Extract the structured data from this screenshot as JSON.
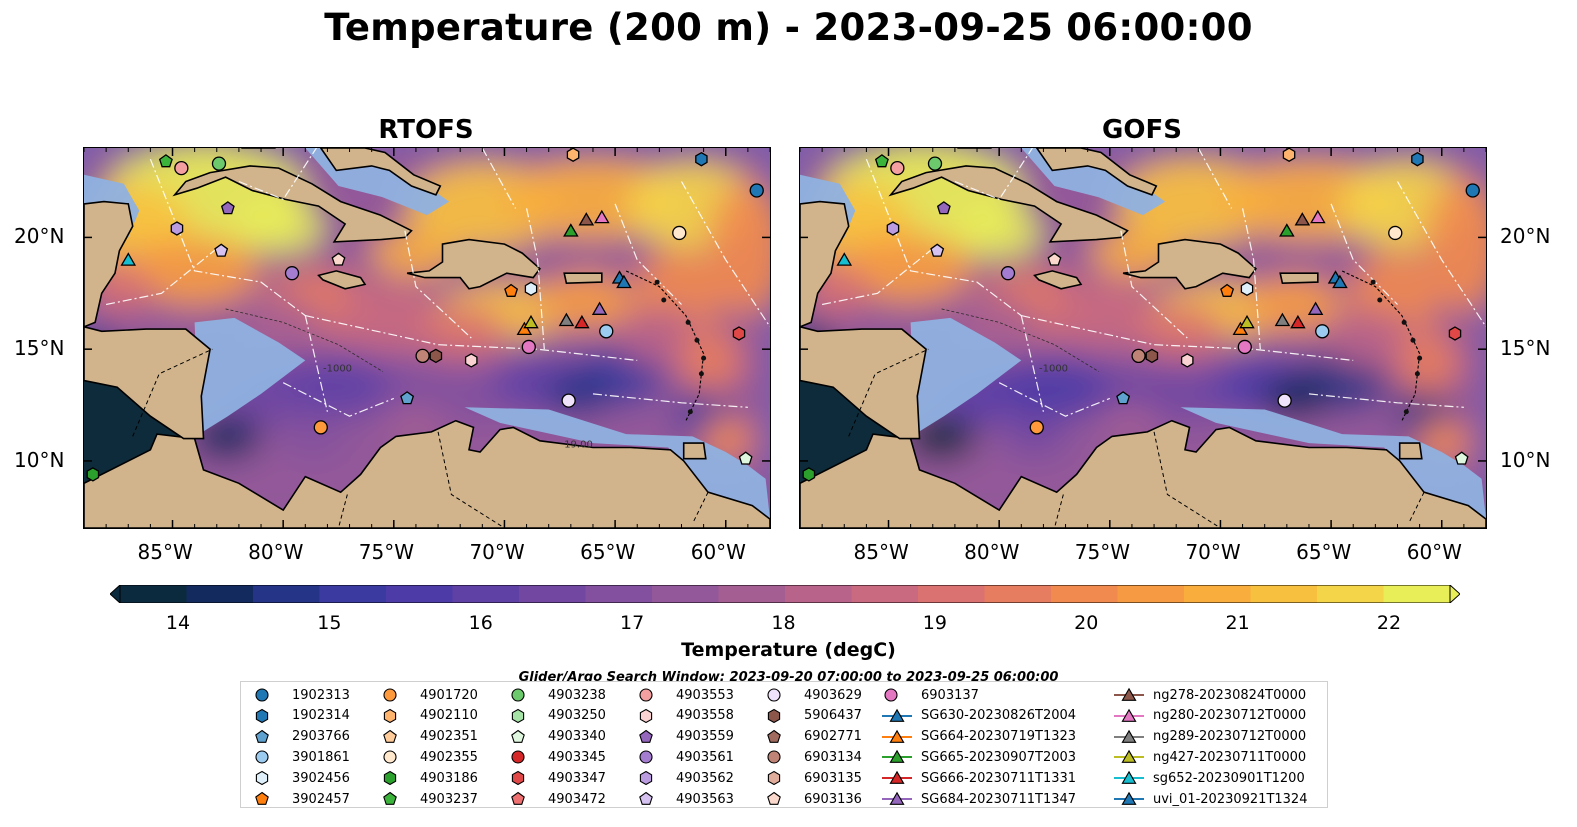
{
  "title": "Temperature (200 m) - 2023-09-25 06:00:00",
  "panels": [
    {
      "title": "RTOFS"
    },
    {
      "title": "GOFS"
    }
  ],
  "axes": {
    "lon_ticks": [
      "85°W",
      "80°W",
      "75°W",
      "70°W",
      "65°W",
      "60°W"
    ],
    "lat_ticks": [
      "20°N",
      "15°N",
      "10°N"
    ],
    "lon_range": [
      -89,
      -58
    ],
    "lat_range": [
      7,
      24
    ],
    "contour_labels": [
      "-1000",
      "19.00"
    ]
  },
  "colorbar": {
    "label": "Temperature (degC)",
    "ticks": [
      "14",
      "15",
      "16",
      "17",
      "18",
      "19",
      "20",
      "21",
      "22"
    ],
    "range": [
      14,
      22
    ],
    "extend": "both",
    "colors": [
      "#0b2a3e",
      "#122a5e",
      "#253487",
      "#3a3aa0",
      "#4d3ca7",
      "#5f41a6",
      "#7147a2",
      "#82509e",
      "#935899",
      "#a55e92",
      "#b7638a",
      "#c96a80",
      "#d97270",
      "#e67c60",
      "#f08a4f",
      "#f69b43",
      "#f8ad3d",
      "#f8c03f",
      "#f4d449",
      "#e8ee58"
    ]
  },
  "legend": {
    "search_window": "Glider/Argo Search Window: 2023-09-20 07:00:00 to 2023-09-25 06:00:00",
    "columns": [
      [
        {
          "label": "1902313",
          "marker": "circle",
          "color": "#1f77b4"
        },
        {
          "label": "1902314",
          "marker": "hexagon",
          "color": "#1f77b4"
        },
        {
          "label": "2903766",
          "marker": "pentagon",
          "color": "#5fa2d0"
        },
        {
          "label": "3901861",
          "marker": "circle",
          "color": "#9ccbf0"
        },
        {
          "label": "3902456",
          "marker": "hexagon",
          "color": "#dff0fb"
        },
        {
          "label": "3902457",
          "marker": "pentagon",
          "color": "#ff7f0e"
        }
      ],
      [
        {
          "label": "4901720",
          "marker": "circle",
          "color": "#ff9a3c"
        },
        {
          "label": "4902110",
          "marker": "hexagon",
          "color": "#ffb46e"
        },
        {
          "label": "4902351",
          "marker": "pentagon",
          "color": "#ffcc9a"
        },
        {
          "label": "4902355",
          "marker": "circle",
          "color": "#ffe8cc"
        },
        {
          "label": "4903186",
          "marker": "hexagon",
          "color": "#2ca02c"
        },
        {
          "label": "4903237",
          "marker": "pentagon",
          "color": "#3cb43c"
        }
      ],
      [
        {
          "label": "4903238",
          "marker": "circle",
          "color": "#6cc96c"
        },
        {
          "label": "4903250",
          "marker": "hexagon",
          "color": "#a6e3a6"
        },
        {
          "label": "4903340",
          "marker": "pentagon",
          "color": "#dff6df"
        },
        {
          "label": "4903345",
          "marker": "circle",
          "color": "#d62728"
        },
        {
          "label": "4903347",
          "marker": "hexagon",
          "color": "#e04848"
        },
        {
          "label": "4903472",
          "marker": "pentagon",
          "color": "#ee7070"
        }
      ],
      [
        {
          "label": "4903553",
          "marker": "circle",
          "color": "#f4a0a0"
        },
        {
          "label": "4903558",
          "marker": "hexagon",
          "color": "#fbd2d2"
        },
        {
          "label": "4903559",
          "marker": "pentagon",
          "color": "#9467bd"
        },
        {
          "label": "4903561",
          "marker": "circle",
          "color": "#a47dd0"
        },
        {
          "label": "4903562",
          "marker": "hexagon",
          "color": "#bb9ce0"
        },
        {
          "label": "4903563",
          "marker": "pentagon",
          "color": "#d6c2f0"
        }
      ],
      [
        {
          "label": "4903629",
          "marker": "circle",
          "color": "#efe2fb"
        },
        {
          "label": "5906437",
          "marker": "hexagon",
          "color": "#8c564b"
        },
        {
          "label": "6902771",
          "marker": "pentagon",
          "color": "#a06a5e"
        },
        {
          "label": "6903134",
          "marker": "circle",
          "color": "#c08476"
        },
        {
          "label": "6903135",
          "marker": "hexagon",
          "color": "#e0ac9c"
        },
        {
          "label": "6903136",
          "marker": "pentagon",
          "color": "#fbd8cc"
        }
      ],
      [
        {
          "label": "6903137",
          "marker": "circle",
          "color": "#e377c2"
        },
        {
          "label": "SG630-20230826T2004",
          "marker": "triangle-line",
          "color": "#1f77b4"
        },
        {
          "label": "SG664-20230719T1323",
          "marker": "triangle-line",
          "color": "#ff7f0e"
        },
        {
          "label": "SG665-20230907T2003",
          "marker": "triangle-line",
          "color": "#2ca02c"
        },
        {
          "label": "SG666-20230711T1331",
          "marker": "triangle-line",
          "color": "#d62728"
        },
        {
          "label": "SG684-20230711T1347",
          "marker": "triangle-line",
          "color": "#9467bd"
        }
      ],
      [
        {
          "label": "ng278-20230824T0000",
          "marker": "triangle-line",
          "color": "#8c564b"
        },
        {
          "label": "ng280-20230712T0000",
          "marker": "triangle-line",
          "color": "#e377c2"
        },
        {
          "label": "ng289-20230712T0000",
          "marker": "triangle-line",
          "color": "#7f7f7f"
        },
        {
          "label": "ng427-20230711T0000",
          "marker": "triangle-line",
          "color": "#bcbd22"
        },
        {
          "label": "sg652-20230901T1200",
          "marker": "triangle-line",
          "color": "#17becf"
        },
        {
          "label": "uvi_01-20230921T1324",
          "marker": "triangle-line",
          "color": "#1f77b4"
        }
      ]
    ]
  },
  "observations": [
    {
      "id": "1902313",
      "lon": -58.6,
      "lat": 22.1
    },
    {
      "id": "1902314",
      "lon": -61.1,
      "lat": 23.5
    },
    {
      "id": "2903766",
      "lon": -74.4,
      "lat": 12.8
    },
    {
      "id": "3901861",
      "lon": -65.4,
      "lat": 15.8
    },
    {
      "id": "3902456",
      "lon": -68.8,
      "lat": 17.7
    },
    {
      "id": "3902457",
      "lon": -69.7,
      "lat": 17.6
    },
    {
      "id": "4901720",
      "lon": -78.3,
      "lat": 11.5
    },
    {
      "id": "4902110",
      "lon": -66.9,
      "lat": 23.7
    },
    {
      "id": "4902355",
      "lon": -62.1,
      "lat": 20.2
    },
    {
      "id": "4903186",
      "lon": -88.6,
      "lat": 9.4
    },
    {
      "id": "4903237",
      "lon": -85.3,
      "lat": 23.4
    },
    {
      "id": "4903238",
      "lon": -82.9,
      "lat": 23.3
    },
    {
      "id": "4903340",
      "lon": -59.1,
      "lat": 10.1
    },
    {
      "id": "4903347",
      "lon": -59.4,
      "lat": 15.7
    },
    {
      "id": "4903553",
      "lon": -84.6,
      "lat": 23.1
    },
    {
      "id": "4903558",
      "lon": -71.5,
      "lat": 14.5
    },
    {
      "id": "4903559",
      "lon": -82.5,
      "lat": 21.3
    },
    {
      "id": "4903561",
      "lon": -79.6,
      "lat": 18.4
    },
    {
      "id": "4903562",
      "lon": -84.8,
      "lat": 20.4
    },
    {
      "id": "4903563",
      "lon": -82.8,
      "lat": 19.4
    },
    {
      "id": "4903629",
      "lon": -67.1,
      "lat": 12.7
    },
    {
      "id": "5906437",
      "lon": -73.1,
      "lat": 14.7
    },
    {
      "id": "6903134",
      "lon": -73.7,
      "lat": 14.7
    },
    {
      "id": "6903136",
      "lon": -77.5,
      "lat": 19.0
    },
    {
      "id": "6903137",
      "lon": -68.9,
      "lat": 15.1
    },
    {
      "id": "SG630-20230826T2004",
      "lon": -64.8,
      "lat": 18.2
    },
    {
      "id": "SG664-20230719T1323",
      "lon": -69.1,
      "lat": 15.9
    },
    {
      "id": "SG665-20230907T2003",
      "lon": -67.0,
      "lat": 20.3
    },
    {
      "id": "SG666-20230711T1331",
      "lon": -66.5,
      "lat": 16.2
    },
    {
      "id": "SG684-20230711T1347",
      "lon": -65.7,
      "lat": 16.8
    },
    {
      "id": "ng278-20230824T0000",
      "lon": -66.3,
      "lat": 20.8
    },
    {
      "id": "ng280-20230712T0000",
      "lon": -65.6,
      "lat": 20.9
    },
    {
      "id": "ng289-20230712T0000",
      "lon": -67.2,
      "lat": 16.3
    },
    {
      "id": "ng427-20230711T0000",
      "lon": -68.8,
      "lat": 16.2
    },
    {
      "id": "sg652-20230901T1200",
      "lon": -87.0,
      "lat": 19.0
    },
    {
      "id": "uvi_01-20230921T1324",
      "lon": -64.6,
      "lat": 18.0
    }
  ]
}
